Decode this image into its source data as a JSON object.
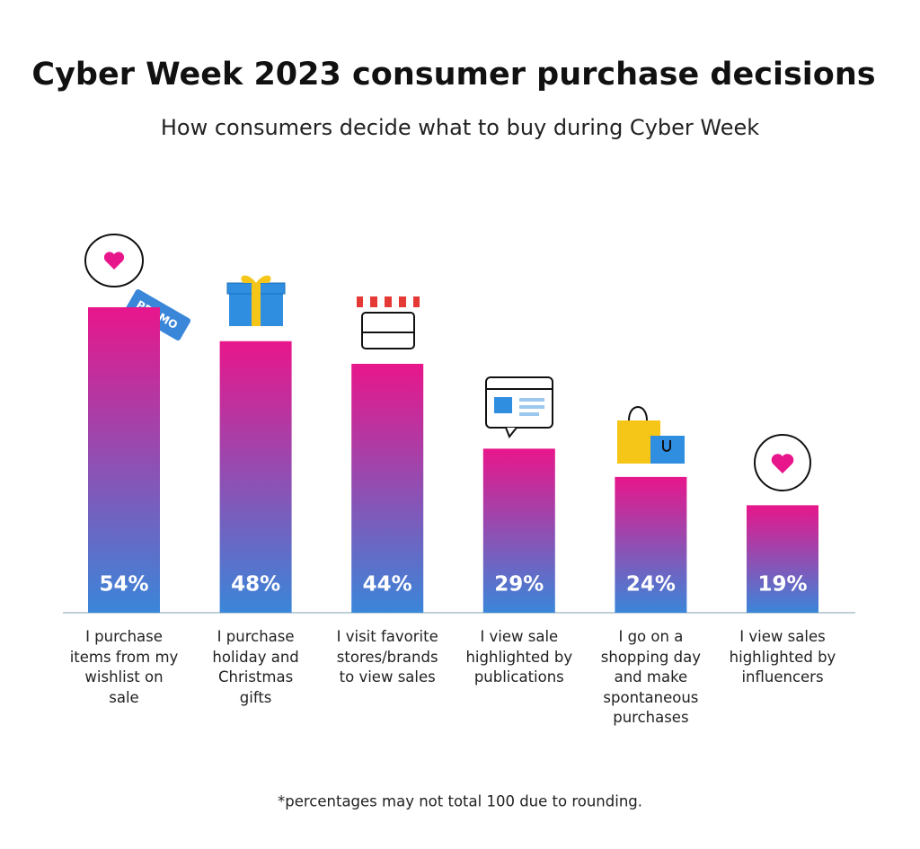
{
  "chart_data": {
    "type": "bar",
    "title": "Cyber Week 2023 consumer purchase decisions",
    "subtitle": "How consumers decide what to buy during Cyber Week",
    "categories": [
      "I purchase items from my wishlist on sale",
      "I purchase holiday and Christmas gifts",
      "I visit favorite stores/brands to view sales",
      "I view sale highlighted by publications",
      "I go on a shopping day and make spontaneous purchases",
      "I view sales highlighted by influencers"
    ],
    "values": [
      54,
      48,
      44,
      29,
      24,
      19
    ],
    "value_labels": [
      "54%",
      "48%",
      "44%",
      "29%",
      "24%",
      "19%"
    ],
    "color_top": "#e8168b",
    "color_bottom": "#3a86d9",
    "footnote": "*percentages may not total 100 due to rounding."
  }
}
